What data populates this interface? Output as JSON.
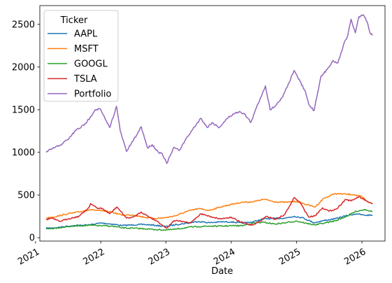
{
  "chart_data": {
    "type": "line",
    "xlabel": "Date",
    "ylabel": "",
    "xlim": [
      "2021-01-25",
      "2026-05-10"
    ],
    "ylim": [
      -40,
      2720
    ],
    "grid": false,
    "xticks": [
      {
        "date": "2021-01-01",
        "label": "2021"
      },
      {
        "date": "2022-01-01",
        "label": "2022"
      },
      {
        "date": "2023-01-01",
        "label": "2023"
      },
      {
        "date": "2024-01-01",
        "label": "2024"
      },
      {
        "date": "2025-01-01",
        "label": "2025"
      },
      {
        "date": "2026-01-01",
        "label": "2026"
      }
    ],
    "yticks": [
      {
        "value": 0,
        "label": "0"
      },
      {
        "value": 500,
        "label": "500"
      },
      {
        "value": 1000,
        "label": "1000"
      },
      {
        "value": 1500,
        "label": "1500"
      },
      {
        "value": 2000,
        "label": "2000"
      },
      {
        "value": 2500,
        "label": "2500"
      }
    ],
    "legend": {
      "title": "Ticker",
      "position": "top-left"
    },
    "series": [
      {
        "name": "AAPL",
        "color": "#1f77b4",
        "points": [
          [
            "2021-03-01",
            110
          ],
          [
            "2021-05-01",
            118
          ],
          [
            "2021-07-01",
            135
          ],
          [
            "2021-09-01",
            145
          ],
          [
            "2021-11-01",
            150
          ],
          [
            "2022-01-01",
            172
          ],
          [
            "2022-03-01",
            160
          ],
          [
            "2022-05-01",
            142
          ],
          [
            "2022-07-01",
            150
          ],
          [
            "2022-09-01",
            155
          ],
          [
            "2022-11-01",
            145
          ],
          [
            "2023-01-01",
            130
          ],
          [
            "2023-03-01",
            155
          ],
          [
            "2023-05-01",
            170
          ],
          [
            "2023-07-01",
            190
          ],
          [
            "2023-09-01",
            175
          ],
          [
            "2023-11-01",
            185
          ],
          [
            "2024-01-01",
            185
          ],
          [
            "2024-03-01",
            170
          ],
          [
            "2024-05-01",
            185
          ],
          [
            "2024-07-01",
            220
          ],
          [
            "2024-09-01",
            225
          ],
          [
            "2024-11-01",
            230
          ],
          [
            "2024-12-20",
            250
          ],
          [
            "2025-02-01",
            235
          ],
          [
            "2025-04-08",
            175
          ],
          [
            "2025-06-01",
            200
          ],
          [
            "2025-08-01",
            220
          ],
          [
            "2025-10-01",
            255
          ],
          [
            "2025-12-01",
            280
          ],
          [
            "2026-01-15",
            262
          ],
          [
            "2026-03-01",
            265
          ]
        ]
      },
      {
        "name": "MSFT",
        "color": "#ff7f0e",
        "points": [
          [
            "2021-03-01",
            230
          ],
          [
            "2021-05-01",
            250
          ],
          [
            "2021-07-01",
            280
          ],
          [
            "2021-09-01",
            300
          ],
          [
            "2021-11-01",
            330
          ],
          [
            "2022-01-01",
            315
          ],
          [
            "2022-03-01",
            300
          ],
          [
            "2022-05-01",
            265
          ],
          [
            "2022-07-01",
            265
          ],
          [
            "2022-09-01",
            240
          ],
          [
            "2022-11-01",
            225
          ],
          [
            "2023-01-01",
            235
          ],
          [
            "2023-03-01",
            260
          ],
          [
            "2023-05-01",
            310
          ],
          [
            "2023-07-01",
            340
          ],
          [
            "2023-09-01",
            320
          ],
          [
            "2023-11-01",
            360
          ],
          [
            "2024-01-01",
            390
          ],
          [
            "2024-03-01",
            415
          ],
          [
            "2024-05-01",
            420
          ],
          [
            "2024-07-01",
            450
          ],
          [
            "2024-09-01",
            420
          ],
          [
            "2024-11-01",
            415
          ],
          [
            "2025-01-01",
            425
          ],
          [
            "2025-03-01",
            385
          ],
          [
            "2025-04-15",
            360
          ],
          [
            "2025-06-01",
            460
          ],
          [
            "2025-08-01",
            515
          ],
          [
            "2025-10-01",
            510
          ],
          [
            "2025-11-15",
            505
          ],
          [
            "2026-01-01",
            480
          ],
          [
            "2026-02-01",
            420
          ],
          [
            "2026-03-01",
            405
          ]
        ]
      },
      {
        "name": "GOOGL",
        "color": "#2ca02c",
        "points": [
          [
            "2021-03-01",
            100
          ],
          [
            "2021-05-01",
            115
          ],
          [
            "2021-07-01",
            130
          ],
          [
            "2021-09-01",
            140
          ],
          [
            "2021-11-01",
            145
          ],
          [
            "2022-01-01",
            140
          ],
          [
            "2022-03-01",
            135
          ],
          [
            "2022-05-01",
            115
          ],
          [
            "2022-07-01",
            110
          ],
          [
            "2022-09-01",
            105
          ],
          [
            "2022-11-01",
            95
          ],
          [
            "2023-01-01",
            90
          ],
          [
            "2023-03-01",
            100
          ],
          [
            "2023-05-01",
            120
          ],
          [
            "2023-07-01",
            130
          ],
          [
            "2023-09-01",
            135
          ],
          [
            "2023-11-01",
            135
          ],
          [
            "2024-01-01",
            140
          ],
          [
            "2024-03-01",
            140
          ],
          [
            "2024-05-01",
            170
          ],
          [
            "2024-07-01",
            180
          ],
          [
            "2024-09-01",
            160
          ],
          [
            "2024-11-01",
            175
          ],
          [
            "2025-01-01",
            195
          ],
          [
            "2025-03-01",
            165
          ],
          [
            "2025-04-15",
            150
          ],
          [
            "2025-06-01",
            170
          ],
          [
            "2025-08-01",
            195
          ],
          [
            "2025-10-01",
            245
          ],
          [
            "2025-12-01",
            310
          ],
          [
            "2026-01-20",
            330
          ],
          [
            "2026-03-01",
            305
          ]
        ]
      },
      {
        "name": "TSLA",
        "color": "#d62728",
        "points": [
          [
            "2021-03-01",
            210
          ],
          [
            "2021-04-01",
            230
          ],
          [
            "2021-05-15",
            190
          ],
          [
            "2021-07-01",
            220
          ],
          [
            "2021-09-01",
            250
          ],
          [
            "2021-10-25",
            350
          ],
          [
            "2021-11-05",
            400
          ],
          [
            "2021-12-15",
            340
          ],
          [
            "2022-01-01",
            350
          ],
          [
            "2022-02-20",
            280
          ],
          [
            "2022-04-01",
            360
          ],
          [
            "2022-05-25",
            230
          ],
          [
            "2022-07-01",
            240
          ],
          [
            "2022-08-15",
            300
          ],
          [
            "2022-10-01",
            240
          ],
          [
            "2022-11-15",
            190
          ],
          [
            "2023-01-03",
            110
          ],
          [
            "2023-02-15",
            200
          ],
          [
            "2023-04-01",
            190
          ],
          [
            "2023-05-15",
            170
          ],
          [
            "2023-07-15",
            280
          ],
          [
            "2023-09-01",
            250
          ],
          [
            "2023-11-01",
            220
          ],
          [
            "2024-01-01",
            240
          ],
          [
            "2024-02-15",
            190
          ],
          [
            "2024-04-20",
            145
          ],
          [
            "2024-06-01",
            180
          ],
          [
            "2024-07-15",
            250
          ],
          [
            "2024-09-01",
            215
          ],
          [
            "2024-10-20",
            260
          ],
          [
            "2024-11-15",
            340
          ],
          [
            "2024-12-17",
            470
          ],
          [
            "2025-01-20",
            410
          ],
          [
            "2025-03-10",
            240
          ],
          [
            "2025-04-15",
            260
          ],
          [
            "2025-05-25",
            350
          ],
          [
            "2025-07-01",
            310
          ],
          [
            "2025-08-15",
            340
          ],
          [
            "2025-10-01",
            450
          ],
          [
            "2025-11-01",
            430
          ],
          [
            "2025-12-15",
            480
          ],
          [
            "2026-01-15",
            440
          ],
          [
            "2026-02-15",
            410
          ],
          [
            "2026-03-01",
            395
          ]
        ]
      },
      {
        "name": "Portfolio",
        "color": "#9467bd",
        "points": [
          [
            "2021-03-01",
            1000
          ],
          [
            "2021-04-01",
            1040
          ],
          [
            "2021-05-15",
            1080
          ],
          [
            "2021-07-01",
            1150
          ],
          [
            "2021-08-15",
            1260
          ],
          [
            "2021-10-01",
            1320
          ],
          [
            "2021-11-05",
            1420
          ],
          [
            "2021-12-01",
            1500
          ],
          [
            "2021-12-28",
            1510
          ],
          [
            "2022-01-28",
            1380
          ],
          [
            "2022-02-20",
            1290
          ],
          [
            "2022-03-30",
            1540
          ],
          [
            "2022-04-20",
            1250
          ],
          [
            "2022-05-25",
            1010
          ],
          [
            "2022-06-20",
            1100
          ],
          [
            "2022-07-20",
            1200
          ],
          [
            "2022-08-15",
            1300
          ],
          [
            "2022-09-20",
            1050
          ],
          [
            "2022-10-15",
            1090
          ],
          [
            "2022-11-20",
            1000
          ],
          [
            "2022-12-10",
            990
          ],
          [
            "2023-01-05",
            870
          ],
          [
            "2023-02-15",
            1060
          ],
          [
            "2023-03-15",
            1020
          ],
          [
            "2023-04-15",
            1130
          ],
          [
            "2023-05-20",
            1240
          ],
          [
            "2023-07-15",
            1400
          ],
          [
            "2023-08-20",
            1290
          ],
          [
            "2023-09-15",
            1350
          ],
          [
            "2023-10-25",
            1290
          ],
          [
            "2023-12-15",
            1410
          ],
          [
            "2024-01-15",
            1450
          ],
          [
            "2024-02-15",
            1480
          ],
          [
            "2024-03-15",
            1450
          ],
          [
            "2024-04-20",
            1350
          ],
          [
            "2024-05-20",
            1520
          ],
          [
            "2024-07-10",
            1780
          ],
          [
            "2024-08-05",
            1500
          ],
          [
            "2024-09-10",
            1560
          ],
          [
            "2024-10-10",
            1640
          ],
          [
            "2024-11-20",
            1820
          ],
          [
            "2024-12-17",
            1960
          ],
          [
            "2025-01-20",
            1830
          ],
          [
            "2025-02-20",
            1700
          ],
          [
            "2025-03-10",
            1560
          ],
          [
            "2025-04-08",
            1490
          ],
          [
            "2025-05-15",
            1880
          ],
          [
            "2025-06-20",
            1970
          ],
          [
            "2025-07-20",
            2070
          ],
          [
            "2025-08-20",
            2050
          ],
          [
            "2025-09-20",
            2260
          ],
          [
            "2025-10-15",
            2380
          ],
          [
            "2025-11-01",
            2560
          ],
          [
            "2025-11-25",
            2400
          ],
          [
            "2025-12-15",
            2590
          ],
          [
            "2026-01-10",
            2610
          ],
          [
            "2026-01-30",
            2530
          ],
          [
            "2026-02-15",
            2400
          ],
          [
            "2026-03-01",
            2370
          ]
        ]
      }
    ]
  }
}
